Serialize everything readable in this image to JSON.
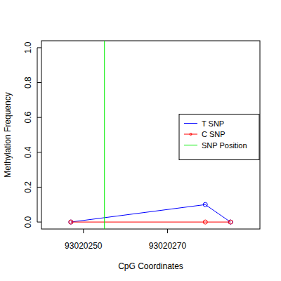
{
  "chart_data": {
    "type": "line",
    "x_label": "CpG Coordinates",
    "y_label": "Methylation Frequency",
    "x": [
      93020247,
      93020279,
      93020285
    ],
    "series": [
      {
        "name": "T SNP",
        "color": "#0000ff",
        "marker": "circle",
        "values": [
          0,
          0.1,
          0
        ]
      },
      {
        "name": "C SNP",
        "color": "#ff0000",
        "marker": "circle",
        "values": [
          0,
          0,
          0
        ]
      },
      {
        "name": "SNP Position",
        "color": "#00ee00",
        "type": "vline",
        "x": [
          93020255
        ]
      }
    ],
    "xlim": [
      93020240,
      93020292
    ],
    "xticks": [
      93020250,
      93020270
    ],
    "ylim": [
      -0.04,
      1.04
    ],
    "yticks": [
      {
        "value": 0,
        "label": "0.0"
      },
      {
        "value": 0.2,
        "label": "0.2"
      },
      {
        "value": 0.4,
        "label": "0.4"
      },
      {
        "value": 0.6,
        "label": "0.6"
      },
      {
        "value": 0.8,
        "label": "0.8"
      },
      {
        "value": 1,
        "label": "1.0"
      }
    ],
    "legend": "right"
  }
}
